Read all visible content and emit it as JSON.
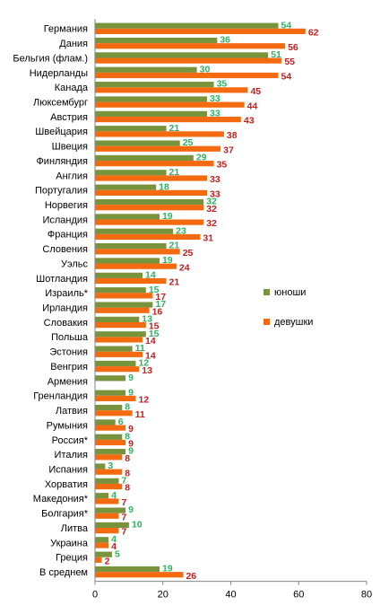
{
  "chart_data": {
    "type": "bar",
    "orientation": "horizontal",
    "categories": [
      "Германия",
      "Дания",
      "Бельгия (флам.)",
      "Нидерланды",
      "Канада",
      "Люксембург",
      "Австрия",
      "Швейцария",
      "Швеция",
      "Финляндия",
      "Англия",
      "Португалия",
      "Норвегия",
      "Исландия",
      "Франция",
      "Словения",
      "Уэльс",
      "Шотландия",
      "Израиль*",
      "Ирландия",
      "Словакия",
      "Польша",
      "Эстония",
      "Венгрия",
      "Армения",
      "Гренландия",
      "Латвия",
      "Румыния",
      "Россия*",
      "Италия",
      "Испания",
      "Хорватия",
      "Македония*",
      "Болгария*",
      "Литва",
      "Украина",
      "Греция",
      "В среднем"
    ],
    "series": [
      {
        "name": "юноши",
        "color": "#77933c",
        "label_color": "#2eb35f",
        "values": [
          54,
          36,
          51,
          30,
          35,
          33,
          33,
          21,
          25,
          29,
          21,
          18,
          32,
          19,
          23,
          21,
          19,
          14,
          15,
          17,
          13,
          15,
          11,
          12,
          9,
          9,
          8,
          6,
          8,
          9,
          3,
          7,
          4,
          9,
          10,
          4,
          5,
          19
        ]
      },
      {
        "name": "девушки",
        "color": "#f36a10",
        "label_color": "#c41e1e",
        "values": [
          62,
          56,
          55,
          54,
          45,
          44,
          43,
          38,
          37,
          35,
          33,
          33,
          32,
          32,
          31,
          25,
          24,
          21,
          17,
          16,
          15,
          14,
          14,
          13,
          null,
          12,
          11,
          9,
          9,
          8,
          8,
          8,
          7,
          7,
          7,
          4,
          2,
          26
        ]
      }
    ],
    "x_ticks": [
      "0",
      "20",
      "40",
      "60",
      "80"
    ],
    "xlim": [
      0,
      80
    ],
    "legend_position": "right",
    "grid": false
  }
}
